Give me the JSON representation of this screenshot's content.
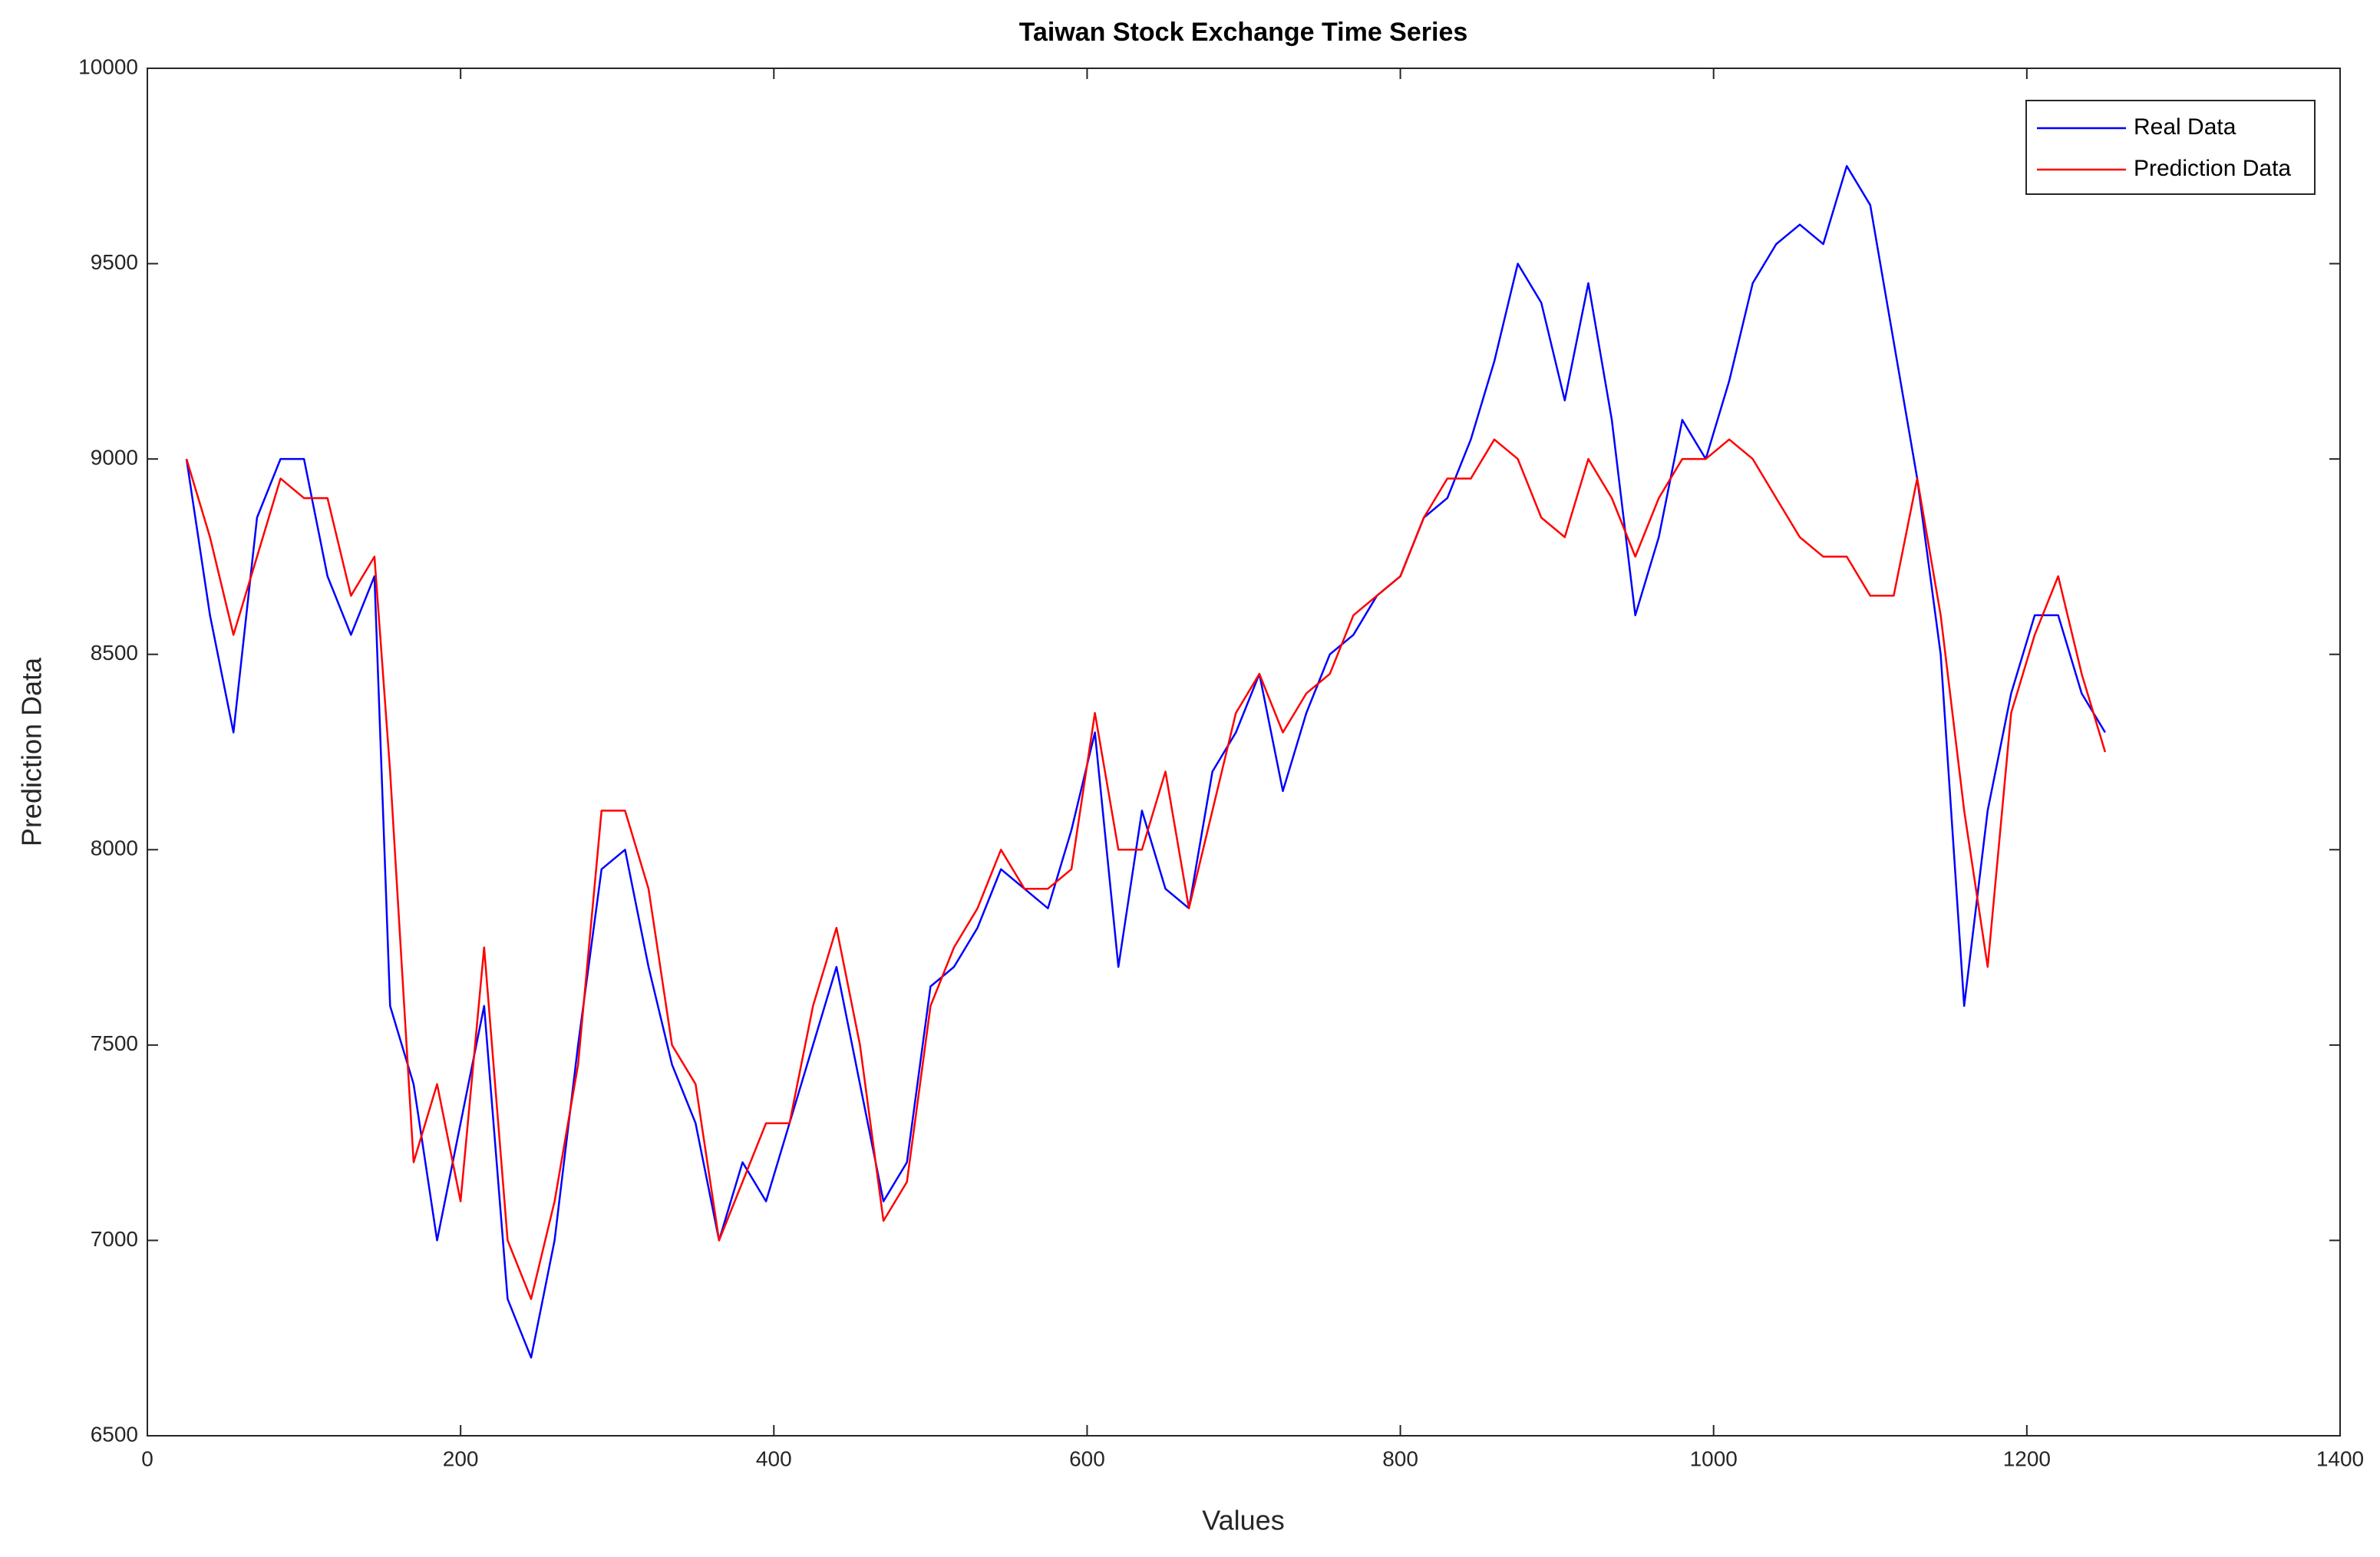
{
  "chart_data": {
    "type": "line",
    "title": "Taiwan Stock Exchange Time Series",
    "x_label": "Values",
    "y_label": "Prediction Data",
    "x": [
      25,
      40,
      55,
      70,
      85,
      100,
      115,
      130,
      145,
      155,
      170,
      185,
      200,
      215,
      230,
      245,
      260,
      275,
      290,
      305,
      320,
      335,
      350,
      365,
      380,
      395,
      410,
      425,
      440,
      455,
      470,
      485,
      500,
      515,
      530,
      545,
      560,
      575,
      590,
      605,
      620,
      635,
      650,
      665,
      680,
      695,
      710,
      725,
      740,
      755,
      770,
      785,
      800,
      815,
      830,
      845,
      860,
      875,
      890,
      905,
      920,
      935,
      950,
      965,
      980,
      995,
      1010,
      1025,
      1040,
      1055,
      1070,
      1085,
      1100,
      1115,
      1130,
      1145,
      1160,
      1175,
      1190,
      1205,
      1220,
      1235,
      1250
    ],
    "series": [
      {
        "name": "Real Data",
        "color": "#0000ff",
        "values": [
          9000,
          8600,
          8300,
          8850,
          9000,
          9000,
          8700,
          8550,
          8700,
          7600,
          7400,
          7000,
          7300,
          7600,
          6850,
          6700,
          7000,
          7500,
          7950,
          8000,
          7700,
          7450,
          7300,
          7000,
          7200,
          7100,
          7300,
          7500,
          7700,
          7400,
          7100,
          7200,
          7650,
          7700,
          7800,
          7950,
          7900,
          7850,
          8050,
          8300,
          7700,
          8100,
          7900,
          7850,
          8200,
          8300,
          8450,
          8150,
          8350,
          8500,
          8550,
          8650,
          8700,
          8850,
          8900,
          9050,
          9250,
          9500,
          9400,
          9150,
          9450,
          9100,
          8600,
          8800,
          9100,
          9000,
          9200,
          9450,
          9550,
          9600,
          9550,
          9750,
          9650,
          9300,
          8950,
          8500,
          7600,
          8100,
          8400,
          8600,
          8600,
          8400,
          8300
        ]
      },
      {
        "name": "Prediction Data",
        "color": "#ff0000",
        "values": [
          9000,
          8800,
          8550,
          8750,
          8950,
          8900,
          8900,
          8650,
          8750,
          8200,
          7200,
          7400,
          7100,
          7750,
          7000,
          6850,
          7100,
          7450,
          8100,
          8100,
          7900,
          7500,
          7400,
          7000,
          7150,
          7300,
          7300,
          7600,
          7800,
          7500,
          7050,
          7150,
          7600,
          7750,
          7850,
          8000,
          7900,
          7900,
          7950,
          8350,
          8000,
          8000,
          8200,
          7850,
          8100,
          8350,
          8450,
          8300,
          8400,
          8450,
          8600,
          8650,
          8700,
          8850,
          8950,
          8950,
          9050,
          9000,
          8850,
          8800,
          9000,
          8900,
          8750,
          8900,
          9000,
          9000,
          9050,
          9000,
          8900,
          8800,
          8750,
          8750,
          8650,
          8650,
          8950,
          8600,
          8100,
          7700,
          8350,
          8550,
          8700,
          8450,
          8250
        ]
      }
    ],
    "xlim": [
      0,
      1400
    ],
    "xticks": [
      0,
      200,
      400,
      600,
      800,
      1000,
      1200,
      1400
    ],
    "ylim": [
      6500,
      10000
    ],
    "yticks": [
      6500,
      7000,
      7500,
      8000,
      8500,
      9000,
      9500,
      10000
    ],
    "grid": false,
    "legend": "northeast"
  }
}
